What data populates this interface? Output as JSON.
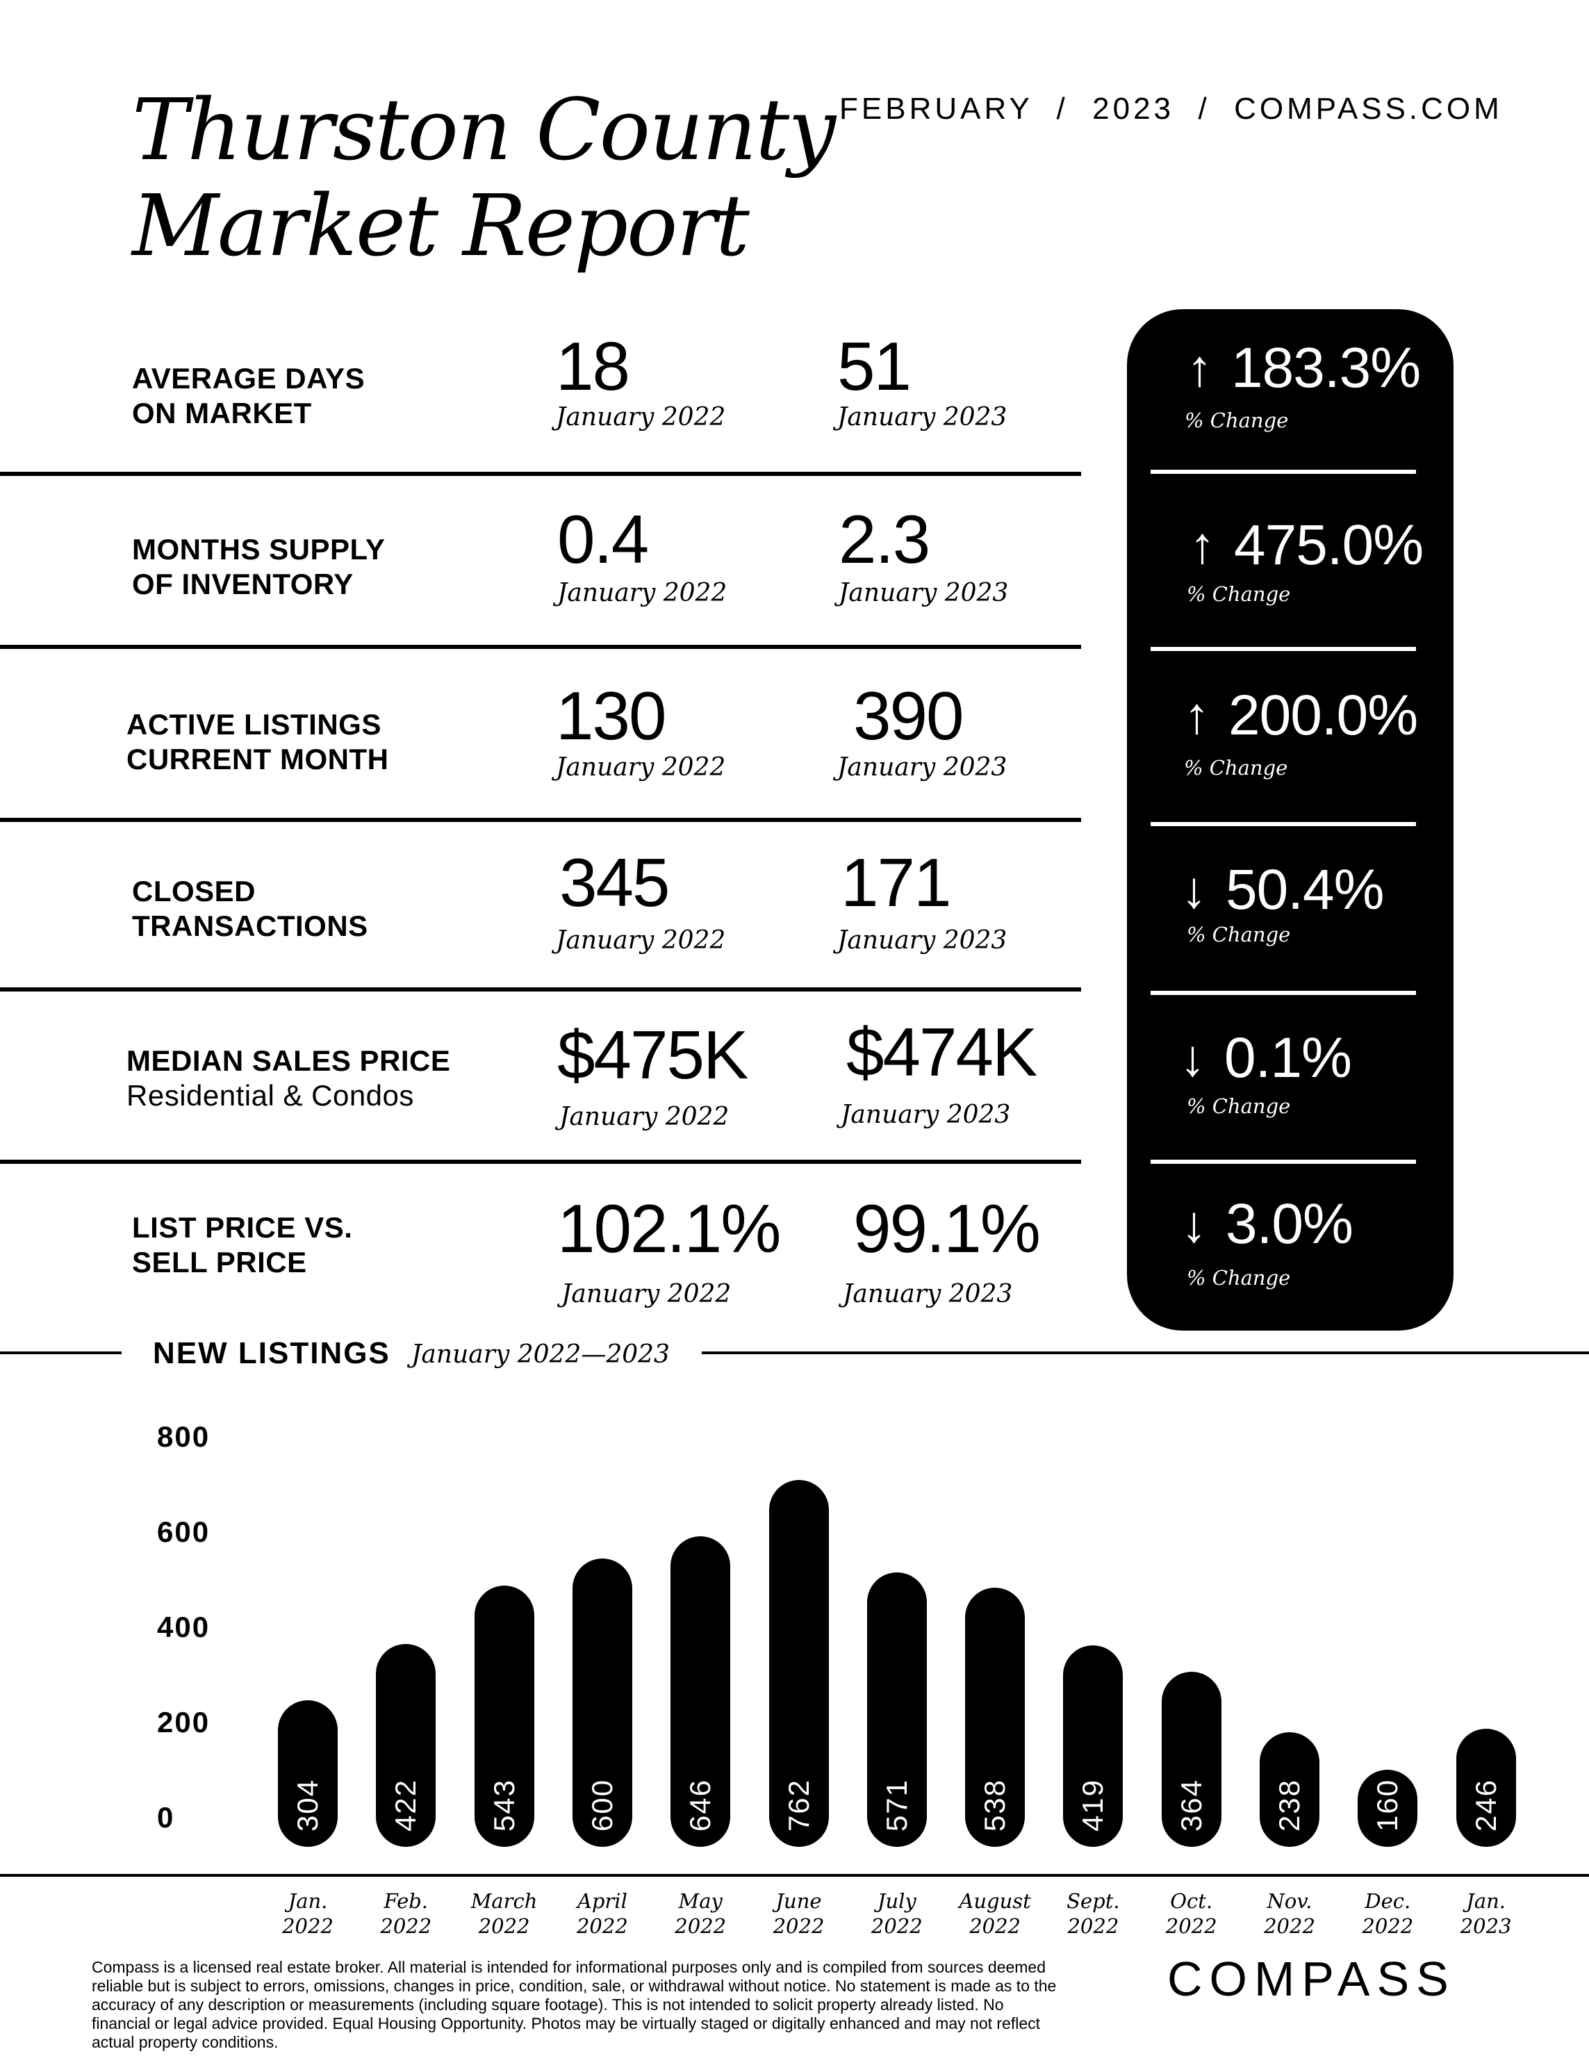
{
  "header": {
    "title_line1": "Thurston County",
    "title_line2": "Market Report",
    "meta": "FEBRUARY  /  2023  /  COMPASS.COM"
  },
  "metrics": [
    {
      "label1": "AVERAGE DAYS",
      "label2": "ON MARKET",
      "val_prev": "18",
      "cap_prev": "January 2022",
      "val_curr": "51",
      "cap_curr": "January 2023",
      "direction": "up",
      "arrow": "↑",
      "change": "183.3%",
      "change_caption": "% Change"
    },
    {
      "label1": "MONTHS SUPPLY",
      "label2": "OF INVENTORY",
      "val_prev": "0.4",
      "cap_prev": "January 2022",
      "val_curr": "2.3",
      "cap_curr": "January 2023",
      "direction": "up",
      "arrow": "↑",
      "change": "475.0%",
      "change_caption": "% Change"
    },
    {
      "label1": "ACTIVE LISTINGS",
      "label2": "CURRENT MONTH",
      "val_prev": "130",
      "cap_prev": "January 2022",
      "val_curr": "390",
      "cap_curr": "January 2023",
      "direction": "up",
      "arrow": "↑",
      "change": "200.0%",
      "change_caption": "% Change"
    },
    {
      "label1": "CLOSED",
      "label2": "TRANSACTIONS",
      "val_prev": "345",
      "cap_prev": "January 2022",
      "val_curr": "171",
      "cap_curr": "January 2023",
      "direction": "down",
      "arrow": "↓",
      "change": "50.4%",
      "change_caption": "% Change"
    },
    {
      "label1": "MEDIAN SALES PRICE",
      "label2": "Residential & Condos",
      "val_prev": "$475K",
      "cap_prev": "January 2022",
      "val_curr": "$474K",
      "cap_curr": "January 2023",
      "direction": "down",
      "arrow": "↓",
      "change": "0.1%",
      "change_caption": "% Change"
    },
    {
      "label1": "LIST PRICE VS.",
      "label2": "SELL PRICE",
      "val_prev": "102.1%",
      "cap_prev": "January 2022",
      "val_curr": "99.1%",
      "cap_curr": "January 2023",
      "direction": "down",
      "arrow": "↓",
      "change": "3.0%",
      "change_caption": "% Change"
    }
  ],
  "new_listings": {
    "title": "NEW LISTINGS",
    "subtitle": "January 2022—2023"
  },
  "chart_data": {
    "type": "bar",
    "title": "NEW LISTINGS",
    "subtitle": "January 2022—2023",
    "ylim": [
      0,
      800
    ],
    "yticks": [
      "800",
      "600",
      "400",
      "200",
      "0"
    ],
    "categories": [
      {
        "line1": "Jan.",
        "line2": "2022"
      },
      {
        "line1": "Feb.",
        "line2": "2022"
      },
      {
        "line1": "March",
        "line2": "2022"
      },
      {
        "line1": "April",
        "line2": "2022"
      },
      {
        "line1": "May",
        "line2": "2022"
      },
      {
        "line1": "June",
        "line2": "2022"
      },
      {
        "line1": "July",
        "line2": "2022"
      },
      {
        "line1": "August",
        "line2": "2022"
      },
      {
        "line1": "Sept.",
        "line2": "2022"
      },
      {
        "line1": "Oct.",
        "line2": "2022"
      },
      {
        "line1": "Nov.",
        "line2": "2022"
      },
      {
        "line1": "Dec.",
        "line2": "2022"
      },
      {
        "line1": "Jan.",
        "line2": "2023"
      }
    ],
    "values": [
      304,
      422,
      543,
      600,
      646,
      762,
      571,
      538,
      419,
      364,
      238,
      160,
      246
    ],
    "grid": false
  },
  "footer": {
    "disclaimer": "Compass is a licensed real estate broker. All material is intended for informational purposes only and is compiled from sources deemed reliable but is subject to errors, omissions, changes in price, condition, sale, or withdrawal without notice. No statement is made as to the accuracy of any description or measurements (including square footage). This is not intended to solicit property already listed. No financial or legal advice provided. Equal Housing Opportunity. Photos may be virtually staged or digitally enhanced and may not reflect actual property conditions.",
    "logo": "COMPASS"
  }
}
